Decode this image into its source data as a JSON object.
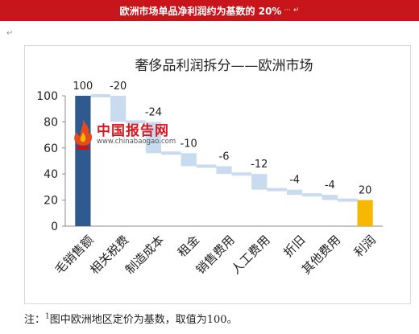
{
  "banner": {
    "title": "欧洲市场单品净利润约为基数的 20%",
    "tail": "··· ↵"
  },
  "para_mark": "↵",
  "watermark": {
    "name": "中国报告网",
    "url": "www.chinabaogao.com"
  },
  "note": {
    "prefix": "注：",
    "sup": "1",
    "text": "图中欧洲地区定价为基数，取值为100。"
  },
  "colors": {
    "banner": "#c8151b",
    "base_bar": "#2e5a90",
    "step_bar": "#c9dcef",
    "profit_bar": "#f6b900"
  },
  "chart_data": {
    "type": "bar",
    "subtype": "waterfall",
    "title": "奢侈品利润拆分——欧洲市场",
    "categories": [
      "毛销售额",
      "相关税费",
      "制造成本",
      "租金",
      "销售费用",
      "人工费用",
      "折旧",
      "其他费用",
      "利润"
    ],
    "values": [
      100,
      -20,
      -24,
      -10,
      -6,
      -12,
      -4,
      -4,
      20
    ],
    "data_labels": [
      "100",
      "-20",
      "-24",
      "-10",
      "-6",
      "-12",
      "-4",
      "-4",
      "20"
    ],
    "ylim": [
      0,
      100
    ],
    "yticks": [
      0,
      20,
      40,
      60,
      80,
      100
    ],
    "grid": false,
    "legend": "none"
  }
}
